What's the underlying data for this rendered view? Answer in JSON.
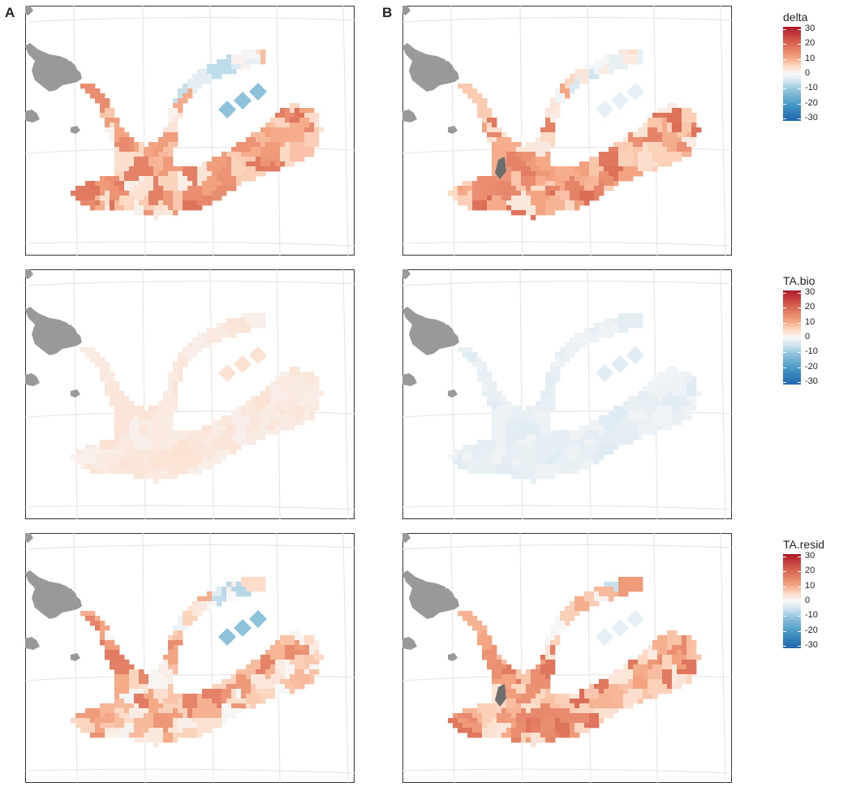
{
  "panel_labels": {
    "a": "A",
    "b": "B"
  },
  "legends": [
    {
      "title": "delta",
      "ticks": [
        "30",
        "20",
        "10",
        "0",
        "-10",
        "-20",
        "-30"
      ]
    },
    {
      "title": "TA.bio",
      "ticks": [
        "30",
        "20",
        "10",
        "0",
        "-10",
        "-20",
        "-30"
      ]
    },
    {
      "title": "TA.resid",
      "ticks": [
        "30",
        "20",
        "10",
        "0",
        "-10",
        "-20",
        "-30"
      ]
    }
  ],
  "colors": {
    "land": "#999999",
    "panel_border": "#333333",
    "grid": "#e3e3e3",
    "scale_high": "#b2182b",
    "scale_mid": "#f7f7f7",
    "scale_low": "#2166ac",
    "na_cell": "#6e6e6e"
  },
  "maps": [
    {
      "id": "a-delta",
      "variable": "delta",
      "column": "A",
      "tone": 0.3
    },
    {
      "id": "b-delta",
      "variable": "delta",
      "column": "B",
      "tone": 0.33
    },
    {
      "id": "a-ta-bio",
      "variable": "TA.bio",
      "column": "A",
      "tone": 0.06
    },
    {
      "id": "b-ta-bio",
      "variable": "TA.bio",
      "column": "B",
      "tone": -0.05
    },
    {
      "id": "a-ta-resid",
      "variable": "TA.resid",
      "column": "A",
      "tone": 0.26
    },
    {
      "id": "b-ta-resid",
      "variable": "TA.resid",
      "column": "B",
      "tone": 0.33
    }
  ]
}
